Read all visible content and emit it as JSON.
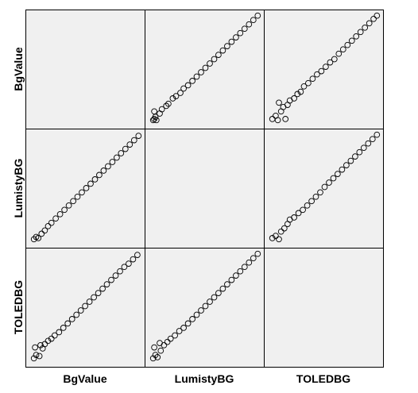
{
  "chart_data": {
    "type": "scatter",
    "subtype": "scatterplot-matrix",
    "variables": [
      "BgValue",
      "LumistyBG",
      "TOLEDBG"
    ],
    "diagonal": "empty",
    "grid": false,
    "marker": "hollow-circle",
    "colors": {
      "panel_background": "#f0f0f0",
      "marker_stroke": "#000000",
      "border": "#000000"
    },
    "pairs": [
      {
        "x": "LumistyBG",
        "y": "BgValue",
        "points": [
          [
            0.02,
            0.02
          ],
          [
            0.03,
            0.03
          ],
          [
            0.04,
            0.05
          ],
          [
            0.05,
            0.02
          ],
          [
            0.03,
            0.1
          ],
          [
            0.08,
            0.08
          ],
          [
            0.1,
            0.12
          ],
          [
            0.14,
            0.15
          ],
          [
            0.16,
            0.17
          ],
          [
            0.2,
            0.22
          ],
          [
            0.23,
            0.24
          ],
          [
            0.27,
            0.27
          ],
          [
            0.3,
            0.31
          ],
          [
            0.34,
            0.34
          ],
          [
            0.38,
            0.38
          ],
          [
            0.42,
            0.42
          ],
          [
            0.46,
            0.46
          ],
          [
            0.5,
            0.5
          ],
          [
            0.54,
            0.54
          ],
          [
            0.58,
            0.58
          ],
          [
            0.62,
            0.62
          ],
          [
            0.66,
            0.66
          ],
          [
            0.7,
            0.7
          ],
          [
            0.74,
            0.74
          ],
          [
            0.78,
            0.78
          ],
          [
            0.82,
            0.82
          ],
          [
            0.86,
            0.86
          ],
          [
            0.9,
            0.9
          ],
          [
            0.94,
            0.94
          ],
          [
            0.98,
            0.98
          ]
        ]
      },
      {
        "x": "TOLEDBG",
        "y": "BgValue",
        "points": [
          [
            0.02,
            0.03
          ],
          [
            0.05,
            0.06
          ],
          [
            0.07,
            0.02
          ],
          [
            0.1,
            0.1
          ],
          [
            0.12,
            0.14
          ],
          [
            0.14,
            0.03
          ],
          [
            0.08,
            0.18
          ],
          [
            0.16,
            0.16
          ],
          [
            0.18,
            0.2
          ],
          [
            0.22,
            0.22
          ],
          [
            0.25,
            0.26
          ],
          [
            0.28,
            0.28
          ],
          [
            0.31,
            0.33
          ],
          [
            0.35,
            0.36
          ],
          [
            0.39,
            0.4
          ],
          [
            0.43,
            0.44
          ],
          [
            0.47,
            0.47
          ],
          [
            0.51,
            0.51
          ],
          [
            0.55,
            0.55
          ],
          [
            0.59,
            0.58
          ],
          [
            0.63,
            0.63
          ],
          [
            0.67,
            0.67
          ],
          [
            0.71,
            0.71
          ],
          [
            0.75,
            0.75
          ],
          [
            0.79,
            0.79
          ],
          [
            0.83,
            0.83
          ],
          [
            0.87,
            0.87
          ],
          [
            0.91,
            0.91
          ],
          [
            0.95,
            0.95
          ],
          [
            0.98,
            0.98
          ]
        ]
      },
      {
        "x": "BgValue",
        "y": "LumistyBG",
        "points": [
          [
            0.02,
            0.02
          ],
          [
            0.04,
            0.04
          ],
          [
            0.06,
            0.03
          ],
          [
            0.09,
            0.07
          ],
          [
            0.12,
            0.1
          ],
          [
            0.15,
            0.14
          ],
          [
            0.18,
            0.17
          ],
          [
            0.22,
            0.21
          ],
          [
            0.26,
            0.25
          ],
          [
            0.3,
            0.29
          ],
          [
            0.34,
            0.33
          ],
          [
            0.38,
            0.37
          ],
          [
            0.42,
            0.41
          ],
          [
            0.46,
            0.45
          ],
          [
            0.5,
            0.49
          ],
          [
            0.54,
            0.53
          ],
          [
            0.58,
            0.57
          ],
          [
            0.62,
            0.61
          ],
          [
            0.66,
            0.65
          ],
          [
            0.7,
            0.69
          ],
          [
            0.74,
            0.73
          ],
          [
            0.78,
            0.77
          ],
          [
            0.82,
            0.81
          ],
          [
            0.86,
            0.85
          ],
          [
            0.9,
            0.89
          ],
          [
            0.94,
            0.93
          ],
          [
            0.98,
            0.97
          ]
        ]
      },
      {
        "x": "TOLEDBG",
        "y": "LumistyBG",
        "points": [
          [
            0.02,
            0.03
          ],
          [
            0.05,
            0.05
          ],
          [
            0.08,
            0.02
          ],
          [
            0.1,
            0.09
          ],
          [
            0.13,
            0.12
          ],
          [
            0.16,
            0.16
          ],
          [
            0.18,
            0.2
          ],
          [
            0.22,
            0.22
          ],
          [
            0.26,
            0.26
          ],
          [
            0.3,
            0.29
          ],
          [
            0.34,
            0.33
          ],
          [
            0.38,
            0.37
          ],
          [
            0.42,
            0.41
          ],
          [
            0.46,
            0.45
          ],
          [
            0.5,
            0.5
          ],
          [
            0.54,
            0.54
          ],
          [
            0.58,
            0.58
          ],
          [
            0.62,
            0.62
          ],
          [
            0.66,
            0.66
          ],
          [
            0.7,
            0.7
          ],
          [
            0.74,
            0.74
          ],
          [
            0.78,
            0.78
          ],
          [
            0.82,
            0.82
          ],
          [
            0.86,
            0.86
          ],
          [
            0.9,
            0.9
          ],
          [
            0.94,
            0.94
          ],
          [
            0.98,
            0.98
          ]
        ]
      },
      {
        "x": "BgValue",
        "y": "TOLEDBG",
        "points": [
          [
            0.02,
            0.02
          ],
          [
            0.04,
            0.05
          ],
          [
            0.07,
            0.04
          ],
          [
            0.03,
            0.12
          ],
          [
            0.1,
            0.11
          ],
          [
            0.12,
            0.15
          ],
          [
            0.08,
            0.14
          ],
          [
            0.15,
            0.18
          ],
          [
            0.18,
            0.2
          ],
          [
            0.21,
            0.23
          ],
          [
            0.25,
            0.26
          ],
          [
            0.29,
            0.3
          ],
          [
            0.33,
            0.34
          ],
          [
            0.37,
            0.38
          ],
          [
            0.41,
            0.42
          ],
          [
            0.45,
            0.46
          ],
          [
            0.49,
            0.5
          ],
          [
            0.53,
            0.54
          ],
          [
            0.57,
            0.58
          ],
          [
            0.61,
            0.62
          ],
          [
            0.65,
            0.66
          ],
          [
            0.69,
            0.7
          ],
          [
            0.73,
            0.74
          ],
          [
            0.77,
            0.78
          ],
          [
            0.81,
            0.82
          ],
          [
            0.85,
            0.86
          ],
          [
            0.89,
            0.89
          ],
          [
            0.93,
            0.93
          ],
          [
            0.97,
            0.97
          ]
        ]
      },
      {
        "x": "LumistyBG",
        "y": "TOLEDBG",
        "points": [
          [
            0.02,
            0.02
          ],
          [
            0.04,
            0.05
          ],
          [
            0.06,
            0.03
          ],
          [
            0.03,
            0.12
          ],
          [
            0.09,
            0.09
          ],
          [
            0.12,
            0.14
          ],
          [
            0.08,
            0.16
          ],
          [
            0.15,
            0.17
          ],
          [
            0.18,
            0.2
          ],
          [
            0.22,
            0.23
          ],
          [
            0.26,
            0.27
          ],
          [
            0.3,
            0.3
          ],
          [
            0.34,
            0.34
          ],
          [
            0.38,
            0.38
          ],
          [
            0.42,
            0.42
          ],
          [
            0.46,
            0.46
          ],
          [
            0.5,
            0.5
          ],
          [
            0.54,
            0.54
          ],
          [
            0.58,
            0.58
          ],
          [
            0.62,
            0.62
          ],
          [
            0.66,
            0.66
          ],
          [
            0.7,
            0.7
          ],
          [
            0.74,
            0.74
          ],
          [
            0.78,
            0.78
          ],
          [
            0.82,
            0.82
          ],
          [
            0.86,
            0.86
          ],
          [
            0.9,
            0.9
          ],
          [
            0.94,
            0.94
          ],
          [
            0.98,
            0.98
          ]
        ]
      }
    ]
  }
}
